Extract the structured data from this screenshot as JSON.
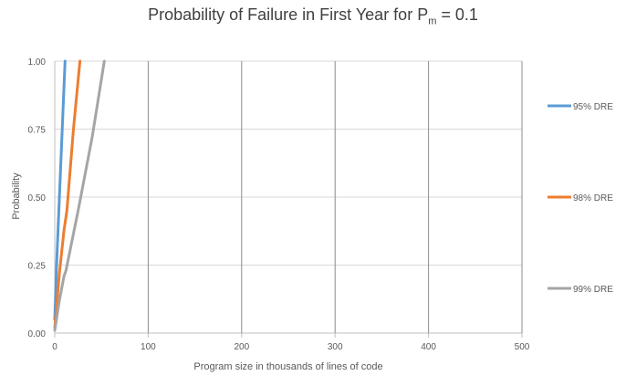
{
  "chart_data": {
    "type": "line",
    "title": {
      "main": "Probability of Failure in First Year for P",
      "sub": "m",
      "suffix": " = 0.1"
    },
    "xlabel": "Program size in thousands of lines of code",
    "ylabel": "Probability",
    "xlim": [
      0,
      500
    ],
    "ylim": [
      0,
      1
    ],
    "xticks": [
      0,
      100,
      200,
      300,
      400,
      500
    ],
    "xtick_labels": [
      "0",
      "100",
      "200",
      "300",
      "400",
      "500"
    ],
    "yticks": [
      0,
      0.25,
      0.5,
      0.75,
      1.0
    ],
    "ytick_labels": [
      "0.00",
      "0.25",
      "0.50",
      "0.75",
      "1.00"
    ],
    "grid": true,
    "legend_position": "right",
    "series": [
      {
        "name": "95% DRE",
        "color": "#5B9BD5",
        "points": [
          [
            0,
            0.05
          ],
          [
            2,
            0.25
          ],
          [
            5,
            0.5
          ],
          [
            8,
            0.75
          ],
          [
            11,
            1.0
          ]
        ]
      },
      {
        "name": "98% DRE",
        "color": "#ED7D31",
        "points": [
          [
            0,
            0.02
          ],
          [
            5,
            0.22
          ],
          [
            10,
            0.38
          ],
          [
            13,
            0.45
          ],
          [
            20,
            0.75
          ],
          [
            27,
            1.0
          ]
        ]
      },
      {
        "name": "99% DRE",
        "color": "#A5A5A5",
        "points": [
          [
            0,
            0.01
          ],
          [
            5,
            0.12
          ],
          [
            10,
            0.21
          ],
          [
            12,
            0.23
          ],
          [
            25,
            0.45
          ],
          [
            40,
            0.72
          ],
          [
            53,
            1.0
          ]
        ]
      }
    ]
  }
}
